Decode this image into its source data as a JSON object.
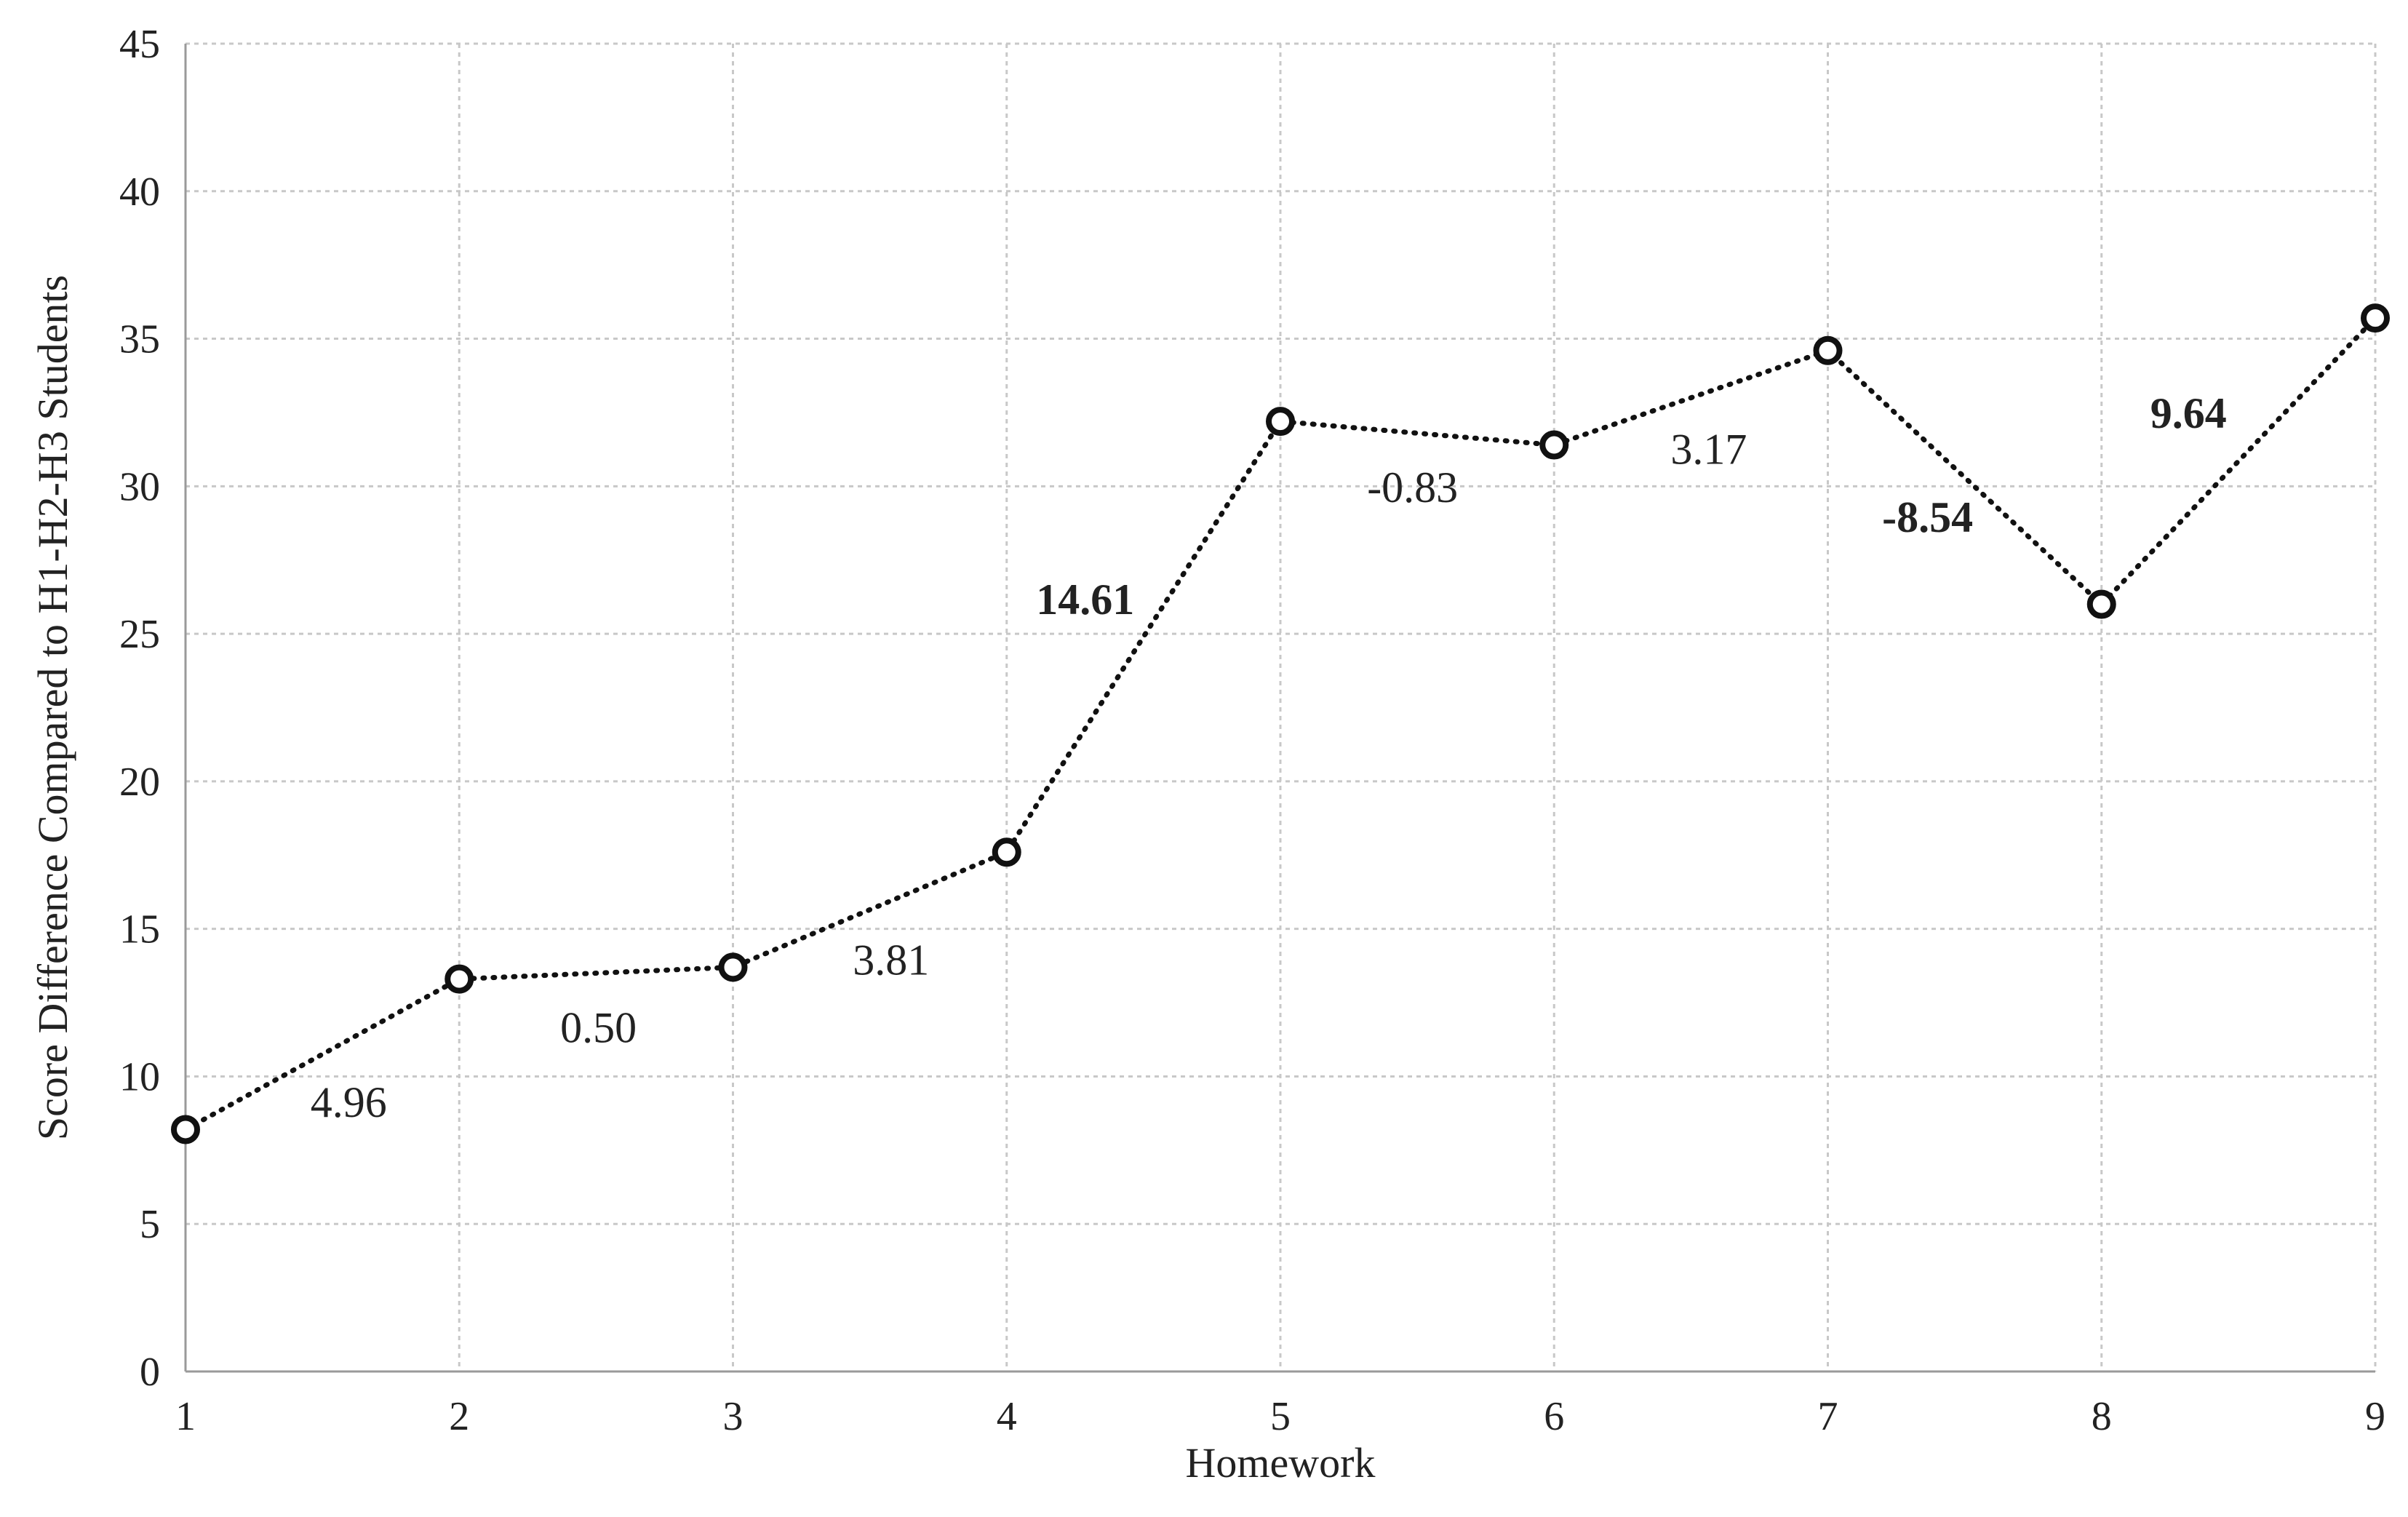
{
  "chart_data": {
    "type": "line",
    "title": "",
    "xlabel": "Homework",
    "ylabel": "Score Difference Compared to H1-H2-H3 Students",
    "x": [
      1,
      2,
      3,
      4,
      5,
      6,
      7,
      8,
      9
    ],
    "xlim": [
      1,
      9
    ],
    "ylim": [
      0,
      45
    ],
    "y_ticks": [
      0,
      5,
      10,
      15,
      20,
      25,
      30,
      35,
      40,
      45
    ],
    "x_ticks": [
      1,
      2,
      3,
      4,
      5,
      6,
      7,
      8,
      9
    ],
    "grid": true,
    "series": [
      {
        "values": [
          8.2,
          13.3,
          13.7,
          17.6,
          32.2,
          31.4,
          34.6,
          26.0,
          35.7
        ],
        "line_style": "dotted",
        "marker": "open-circle",
        "color": "#111111"
      }
    ],
    "annotations": [
      {
        "text": "4.96",
        "between": [
          1,
          2
        ],
        "bold": false
      },
      {
        "text": "0.50",
        "between": [
          2,
          3
        ],
        "bold": false
      },
      {
        "text": "3.81",
        "between": [
          3,
          4
        ],
        "bold": false
      },
      {
        "text": "14.61",
        "between": [
          4,
          5
        ],
        "bold": true
      },
      {
        "text": "-0.83",
        "between": [
          5,
          6
        ],
        "bold": false
      },
      {
        "text": "3.17",
        "between": [
          6,
          7
        ],
        "bold": false
      },
      {
        "text": "-8.54",
        "between": [
          7,
          8
        ],
        "bold": true
      },
      {
        "text": "9.64",
        "between": [
          8,
          9
        ],
        "bold": true
      }
    ]
  }
}
